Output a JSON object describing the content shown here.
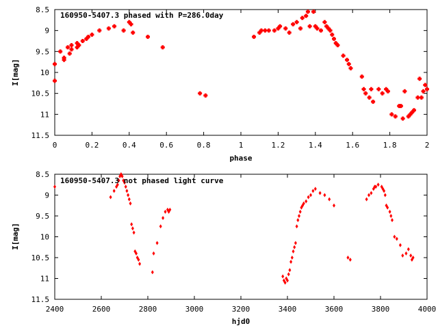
{
  "colors": {
    "marker": "#ff0000",
    "frame": "#000000",
    "background": "#ffffff"
  },
  "chart_data": [
    {
      "type": "scatter",
      "title": "160950-5407.3 phased with P=286.0day",
      "xlabel": "phase",
      "ylabel": "I[mag]",
      "xlim": [
        0,
        2
      ],
      "ylim": [
        11.5,
        8.5
      ],
      "y_inverted": true,
      "grid": false,
      "xticks": [
        "0",
        "0.2",
        "0.4",
        "0.6",
        "0.8",
        "1",
        "1.2",
        "1.4",
        "1.6",
        "1.8",
        "2"
      ],
      "yticks": [
        "8.5",
        "9",
        "9.5",
        "10",
        "10.5",
        "11",
        "11.5"
      ],
      "marker": "square",
      "x": [
        0.0,
        0.0,
        0.03,
        0.05,
        0.05,
        0.07,
        0.08,
        0.09,
        0.09,
        0.12,
        0.12,
        0.13,
        0.15,
        0.17,
        0.18,
        0.2,
        0.24,
        0.29,
        0.32,
        0.37,
        0.4,
        0.41,
        0.42,
        0.5,
        0.58,
        0.78,
        0.81,
        1.07,
        1.1,
        1.11,
        1.13,
        1.15,
        1.18,
        1.2,
        1.21,
        1.24,
        1.26,
        1.28,
        1.3,
        1.32,
        1.33,
        1.35,
        1.36,
        1.37,
        1.39,
        1.4,
        1.41,
        1.43,
        1.45,
        1.46,
        1.47,
        1.48,
        1.49,
        1.5,
        1.51,
        1.52,
        1.55,
        1.57,
        1.58,
        1.59,
        1.65,
        1.66,
        1.67,
        1.69,
        1.7,
        1.71,
        1.74,
        1.76,
        1.78,
        1.79,
        1.81,
        1.83,
        1.85,
        1.86,
        1.87,
        1.88,
        1.9,
        1.91,
        1.92,
        1.93,
        1.95,
        1.96,
        1.97,
        1.98,
        1.99,
        2.0
      ],
      "y": [
        9.8,
        10.2,
        9.5,
        9.7,
        9.65,
        9.4,
        9.55,
        9.45,
        9.35,
        9.4,
        9.3,
        9.35,
        9.25,
        9.2,
        9.15,
        9.1,
        9.0,
        8.95,
        8.9,
        9.0,
        8.8,
        8.85,
        9.05,
        9.15,
        9.4,
        10.5,
        10.55,
        9.15,
        9.05,
        9.0,
        9.0,
        9.0,
        9.0,
        8.95,
        8.9,
        8.95,
        9.05,
        8.85,
        8.8,
        8.95,
        8.7,
        8.65,
        8.55,
        8.9,
        8.55,
        8.9,
        8.95,
        9.0,
        8.8,
        8.9,
        8.95,
        9.0,
        9.1,
        9.2,
        9.3,
        9.35,
        9.6,
        9.7,
        9.8,
        9.9,
        10.1,
        10.4,
        10.5,
        10.6,
        10.4,
        10.7,
        10.4,
        10.5,
        10.4,
        10.45,
        11.0,
        11.05,
        10.8,
        10.8,
        11.1,
        10.45,
        11.05,
        11.0,
        10.95,
        10.9,
        10.6,
        10.15,
        10.6,
        10.45,
        10.3,
        10.4
      ],
      "annotations": []
    },
    {
      "type": "scatter",
      "title": "160950-5407.3 not phased light curve",
      "xlabel": "hjd0",
      "ylabel": "I[mag]",
      "xlim": [
        2400,
        4000
      ],
      "ylim": [
        11.5,
        8.5
      ],
      "y_inverted": true,
      "grid": false,
      "xticks": [
        "2400",
        "2600",
        "2800",
        "3000",
        "3200",
        "3400",
        "3600",
        "3800",
        "4000"
      ],
      "yticks": [
        "8.5",
        "9",
        "9.5",
        "10",
        "10.5",
        "11",
        "11.5"
      ],
      "marker": "diamond",
      "x": [
        2400,
        2640,
        2655,
        2665,
        2670,
        2675,
        2680,
        2685,
        2690,
        2695,
        2700,
        2705,
        2710,
        2715,
        2720,
        2725,
        2730,
        2735,
        2740,
        2745,
        2750,
        2755,
        2760,
        2765,
        2820,
        2825,
        2840,
        2855,
        2865,
        2875,
        2885,
        2890,
        2895,
        3380,
        3385,
        3390,
        3395,
        3400,
        3405,
        3410,
        3415,
        3420,
        3425,
        3430,
        3435,
        3440,
        3445,
        3450,
        3455,
        3460,
        3465,
        3470,
        3480,
        3490,
        3500,
        3510,
        3520,
        3540,
        3560,
        3580,
        3600,
        3660,
        3670,
        3740,
        3750,
        3760,
        3770,
        3775,
        3780,
        3790,
        3805,
        3810,
        3815,
        3820,
        3825,
        3830,
        3840,
        3845,
        3850,
        3860,
        3870,
        3885,
        3895,
        3910,
        3920,
        3930,
        3935,
        3940
      ],
      "y": [
        8.8,
        9.05,
        8.9,
        8.8,
        8.75,
        8.65,
        8.55,
        8.5,
        8.55,
        8.65,
        8.7,
        8.8,
        8.9,
        9.0,
        9.1,
        9.2,
        9.7,
        9.8,
        9.9,
        10.35,
        10.4,
        10.5,
        10.55,
        10.65,
        10.85,
        10.4,
        10.15,
        9.75,
        9.55,
        9.4,
        9.35,
        9.4,
        9.35,
        10.95,
        11.05,
        11.1,
        11.0,
        11.05,
        10.9,
        10.8,
        10.6,
        10.5,
        10.35,
        10.25,
        10.15,
        9.75,
        9.6,
        9.5,
        9.4,
        9.3,
        9.25,
        9.2,
        9.15,
        9.05,
        9.0,
        8.9,
        8.85,
        8.95,
        9.0,
        9.1,
        9.25,
        10.5,
        10.55,
        9.1,
        9.0,
        8.95,
        8.85,
        8.8,
        8.8,
        8.75,
        8.8,
        8.85,
        8.9,
        9.0,
        9.25,
        9.3,
        9.4,
        9.5,
        9.6,
        10.0,
        10.05,
        10.2,
        10.45,
        10.4,
        10.3,
        10.45,
        10.55,
        10.5
      ],
      "annotations": []
    }
  ]
}
